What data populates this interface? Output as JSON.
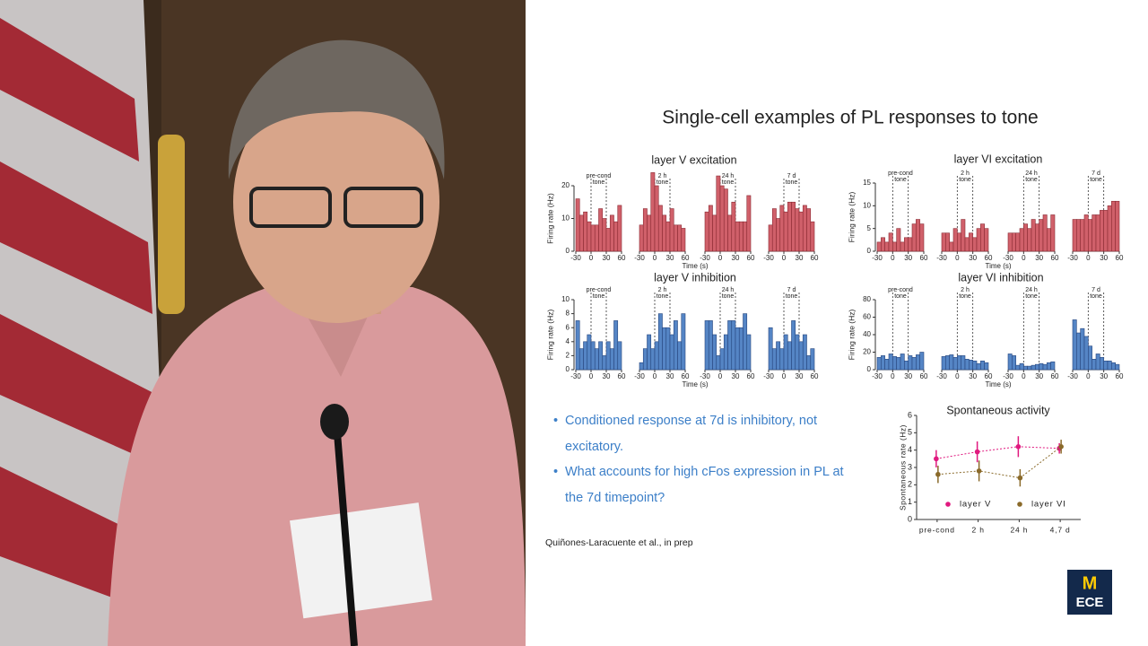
{
  "slide": {
    "title": "Single-cell examples of PL responses to tone",
    "bullets": [
      "Conditioned response at 7d is inhibitory, not excitatory.",
      "What accounts for high cFos expression in PL at the 7d timepoint?"
    ],
    "citation": "Quiñones-Laracuente et al., in prep"
  },
  "logo": {
    "letter": "M",
    "text": "ECE"
  },
  "chart_data": [
    {
      "type": "bar",
      "title": "layer V excitation",
      "ylabel": "Firing rate (Hz)",
      "xlabel": "Time (s)",
      "color": "#d0606a",
      "edge": "#8a2a33",
      "xlim": [
        -30,
        60
      ],
      "xticks": [
        -30,
        0,
        30,
        60
      ],
      "tone_window": [
        0,
        30
      ],
      "ylim": [
        0,
        20
      ],
      "yticks": [
        0,
        10,
        20
      ],
      "groups": [
        {
          "label": "pre-cond",
          "marker": "tone",
          "values": [
            16,
            11,
            12,
            9,
            8,
            8,
            13,
            10,
            7,
            11,
            9,
            14
          ]
        },
        {
          "label": "2 h",
          "marker": "tone",
          "values": [
            8,
            13,
            11,
            24,
            20,
            14,
            11,
            9,
            13,
            8,
            8,
            7
          ]
        },
        {
          "label": "24 h",
          "marker": "tone",
          "values": [
            12,
            14,
            11,
            23,
            20,
            19,
            11,
            15,
            9,
            9,
            9,
            17
          ]
        },
        {
          "label": "7 d",
          "marker": "tone",
          "values": [
            8,
            13,
            10,
            14,
            12,
            15,
            15,
            13,
            12,
            14,
            13,
            9
          ]
        }
      ]
    },
    {
      "type": "bar",
      "title": "layer VI excitation",
      "ylabel": "Firing rate (Hz)",
      "xlabel": "Time (s)",
      "color": "#d0606a",
      "edge": "#8a2a33",
      "xlim": [
        -30,
        60
      ],
      "xticks": [
        -30,
        0,
        30,
        60
      ],
      "tone_window": [
        0,
        30
      ],
      "ylim": [
        0,
        15
      ],
      "yticks": [
        0,
        5,
        10,
        15
      ],
      "groups": [
        {
          "label": "pre-cond",
          "marker": "tone",
          "values": [
            2,
            3,
            2,
            4,
            2,
            5,
            2,
            3,
            3,
            6,
            7,
            6
          ]
        },
        {
          "label": "2 h",
          "marker": "tone",
          "values": [
            4,
            4,
            2,
            5,
            4,
            7,
            3,
            4,
            3,
            5,
            6,
            5
          ]
        },
        {
          "label": "24 h",
          "marker": "tone",
          "values": [
            4,
            4,
            4,
            5,
            6,
            5,
            7,
            6,
            7,
            8,
            5,
            8
          ]
        },
        {
          "label": "7 d",
          "marker": "tone",
          "values": [
            7,
            7,
            7,
            8,
            7,
            8,
            8,
            9,
            9,
            10,
            11,
            11
          ]
        }
      ]
    },
    {
      "type": "bar",
      "title": "layer V inhibition",
      "ylabel": "Firing rate (Hz)",
      "xlabel": "Time (s)",
      "color": "#5585c5",
      "edge": "#27467e",
      "xlim": [
        -30,
        60
      ],
      "xticks": [
        -30,
        0,
        30,
        60
      ],
      "tone_window": [
        0,
        30
      ],
      "ylim": [
        0,
        10
      ],
      "yticks": [
        0,
        2,
        4,
        6,
        8,
        10
      ],
      "groups": [
        {
          "label": "pre-cond",
          "marker": "tone",
          "values": [
            7,
            3,
            4,
            5,
            4,
            3,
            4,
            2,
            4,
            3,
            7,
            4
          ]
        },
        {
          "label": "2 h",
          "marker": "tone",
          "values": [
            1,
            3,
            5,
            3,
            4,
            8,
            6,
            6,
            5,
            7,
            4,
            8
          ]
        },
        {
          "label": "24 h",
          "marker": "tone",
          "values": [
            7,
            7,
            5,
            2,
            3,
            5,
            7,
            7,
            6,
            6,
            8,
            5
          ]
        },
        {
          "label": "7 d",
          "marker": "tone",
          "values": [
            6,
            3,
            4,
            3,
            5,
            4,
            7,
            5,
            4,
            5,
            2,
            3
          ]
        }
      ]
    },
    {
      "type": "bar",
      "title": "layer VI inhibition",
      "ylabel": "Firing rate (Hz)",
      "xlabel": "Time (s)",
      "color": "#5585c5",
      "edge": "#27467e",
      "xlim": [
        -30,
        60
      ],
      "xticks": [
        -30,
        0,
        30,
        60
      ],
      "tone_window": [
        0,
        30
      ],
      "ylim": [
        0,
        80
      ],
      "yticks": [
        0,
        20,
        40,
        60,
        80
      ],
      "groups": [
        {
          "label": "pre-cond",
          "marker": "tone",
          "values": [
            14,
            16,
            12,
            18,
            15,
            14,
            18,
            10,
            16,
            14,
            17,
            20
          ]
        },
        {
          "label": "2 h",
          "marker": "tone",
          "values": [
            15,
            16,
            17,
            14,
            16,
            16,
            12,
            11,
            10,
            7,
            10,
            8
          ]
        },
        {
          "label": "24 h",
          "marker": "tone",
          "values": [
            18,
            16,
            5,
            7,
            4,
            4,
            5,
            6,
            7,
            6,
            8,
            9
          ]
        },
        {
          "label": "7 d",
          "marker": "tone",
          "values": [
            57,
            42,
            47,
            38,
            27,
            12,
            18,
            14,
            10,
            10,
            8,
            6
          ]
        }
      ]
    },
    {
      "type": "line",
      "title": "Spontaneous activity",
      "ylabel": "Spontaneous rate (Hz)",
      "categories": [
        "pre-cond",
        "2 h",
        "24 h",
        "4,7 d"
      ],
      "ylim": [
        0,
        6
      ],
      "yticks": [
        0,
        1,
        2,
        3,
        4,
        5,
        6
      ],
      "series": [
        {
          "name": "layer V",
          "color": "#e0197f",
          "values": [
            3.5,
            3.9,
            4.2,
            4.1
          ],
          "errors": [
            0.5,
            0.6,
            0.6,
            0.3
          ]
        },
        {
          "name": "layer VI",
          "color": "#8a6a2a",
          "values": [
            2.6,
            2.8,
            2.4,
            4.2
          ],
          "errors": [
            0.5,
            0.6,
            0.5,
            0.4
          ]
        }
      ]
    }
  ]
}
